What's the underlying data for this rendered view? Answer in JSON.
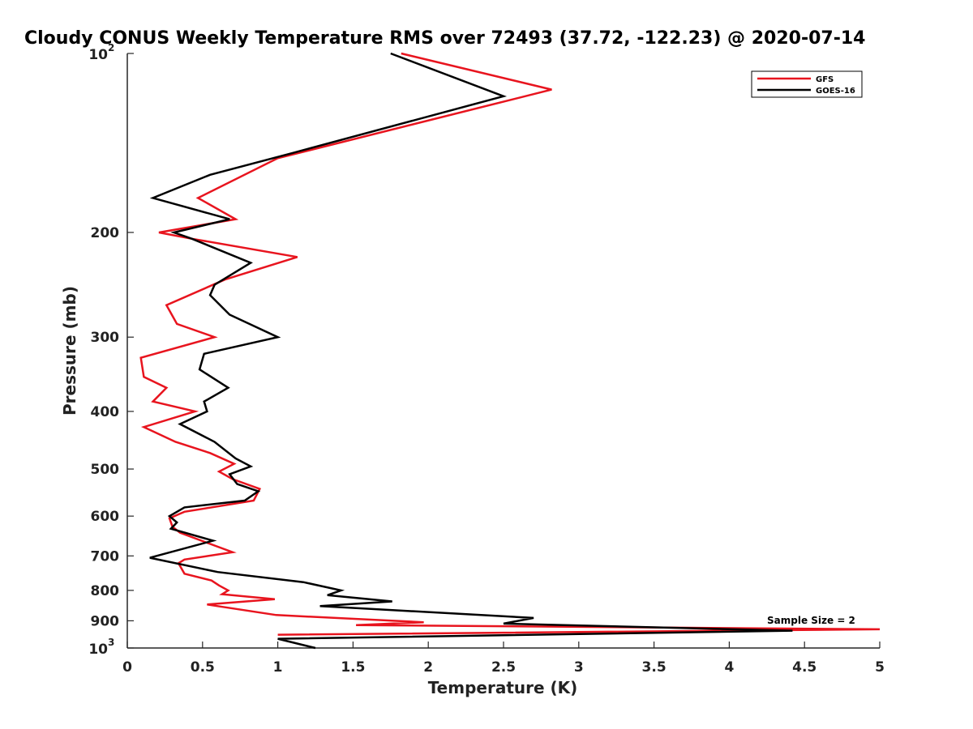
{
  "chart_data": {
    "type": "line",
    "title": "Cloudy CONUS Weekly Temperature RMS over 72493 (37.72, -122.23) @ 2020-07-14",
    "xlabel": "Temperature (K)",
    "ylabel": "Pressure (mb)",
    "xlim": [
      0,
      5
    ],
    "ylim": [
      100,
      1000
    ],
    "y_scale": "log",
    "y_reversed": true,
    "grid": false,
    "legend_position": "top-right",
    "x_ticks": [
      "0",
      "0.5",
      "1",
      "1.5",
      "2",
      "2.5",
      "3",
      "3.5",
      "4",
      "4.5",
      "5"
    ],
    "x_tick_values": [
      0,
      0.5,
      1,
      1.5,
      2,
      2.5,
      3,
      3.5,
      4,
      4.5,
      5
    ],
    "y_ticks": [
      {
        "value": 100,
        "base": "10",
        "exp": "2"
      },
      {
        "value": 200,
        "label": "200"
      },
      {
        "value": 300,
        "label": "300"
      },
      {
        "value": 400,
        "label": "400"
      },
      {
        "value": 500,
        "label": "500"
      },
      {
        "value": 600,
        "label": "600"
      },
      {
        "value": 700,
        "label": "700"
      },
      {
        "value": 800,
        "label": "800"
      },
      {
        "value": 900,
        "label": "900"
      },
      {
        "value": 1000,
        "base": "10",
        "exp": "3"
      }
    ],
    "annotation": "Sample Size = 2",
    "series": [
      {
        "name": "GFS",
        "color": "#e8141e",
        "points": [
          [
            1.82,
            100
          ],
          [
            2.82,
            115
          ],
          [
            1.0,
            150
          ],
          [
            0.47,
            175
          ],
          [
            0.72,
            190
          ],
          [
            0.21,
            200
          ],
          [
            0.43,
            205
          ],
          [
            1.13,
            220
          ],
          [
            0.65,
            240
          ],
          [
            0.26,
            265
          ],
          [
            0.33,
            285
          ],
          [
            0.58,
            300
          ],
          [
            0.09,
            325
          ],
          [
            0.11,
            350
          ],
          [
            0.26,
            365
          ],
          [
            0.17,
            385
          ],
          [
            0.45,
            400
          ],
          [
            0.11,
            425
          ],
          [
            0.32,
            450
          ],
          [
            0.55,
            470
          ],
          [
            0.71,
            490
          ],
          [
            0.61,
            505
          ],
          [
            0.7,
            520
          ],
          [
            0.88,
            540
          ],
          [
            0.84,
            565
          ],
          [
            0.38,
            590
          ],
          [
            0.28,
            605
          ],
          [
            0.3,
            625
          ],
          [
            0.35,
            640
          ],
          [
            0.7,
            690
          ],
          [
            0.38,
            710
          ],
          [
            0.34,
            720
          ],
          [
            0.38,
            750
          ],
          [
            0.56,
            770
          ],
          [
            0.61,
            785
          ],
          [
            0.67,
            800
          ],
          [
            0.63,
            812
          ],
          [
            0.98,
            828
          ],
          [
            0.53,
            845
          ],
          [
            0.99,
            880
          ],
          [
            1.97,
            905
          ],
          [
            1.52,
            915
          ],
          [
            5.0,
            930
          ],
          [
            1.0,
            950
          ]
        ]
      },
      {
        "name": "GOES-16",
        "color": "#000000",
        "points": [
          [
            1.75,
            100
          ],
          [
            2.5,
            118
          ],
          [
            1.1,
            147
          ],
          [
            0.55,
            160
          ],
          [
            0.17,
            175
          ],
          [
            0.68,
            190
          ],
          [
            0.31,
            200
          ],
          [
            0.43,
            205
          ],
          [
            0.82,
            225
          ],
          [
            0.58,
            245
          ],
          [
            0.55,
            255
          ],
          [
            0.68,
            275
          ],
          [
            1.0,
            300
          ],
          [
            0.51,
            320
          ],
          [
            0.48,
            340
          ],
          [
            0.67,
            365
          ],
          [
            0.51,
            385
          ],
          [
            0.53,
            400
          ],
          [
            0.35,
            420
          ],
          [
            0.58,
            450
          ],
          [
            0.72,
            480
          ],
          [
            0.82,
            495
          ],
          [
            0.68,
            510
          ],
          [
            0.73,
            530
          ],
          [
            0.87,
            545
          ],
          [
            0.78,
            565
          ],
          [
            0.38,
            580
          ],
          [
            0.28,
            600
          ],
          [
            0.33,
            615
          ],
          [
            0.29,
            630
          ],
          [
            0.57,
            660
          ],
          [
            0.15,
            705
          ],
          [
            0.6,
            745
          ],
          [
            1.17,
            775
          ],
          [
            1.42,
            800
          ],
          [
            1.33,
            815
          ],
          [
            1.76,
            835
          ],
          [
            1.28,
            850
          ],
          [
            2.7,
            890
          ],
          [
            2.5,
            910
          ],
          [
            4.42,
            935
          ],
          [
            1.0,
            965
          ],
          [
            1.25,
            1000
          ]
        ]
      }
    ]
  }
}
